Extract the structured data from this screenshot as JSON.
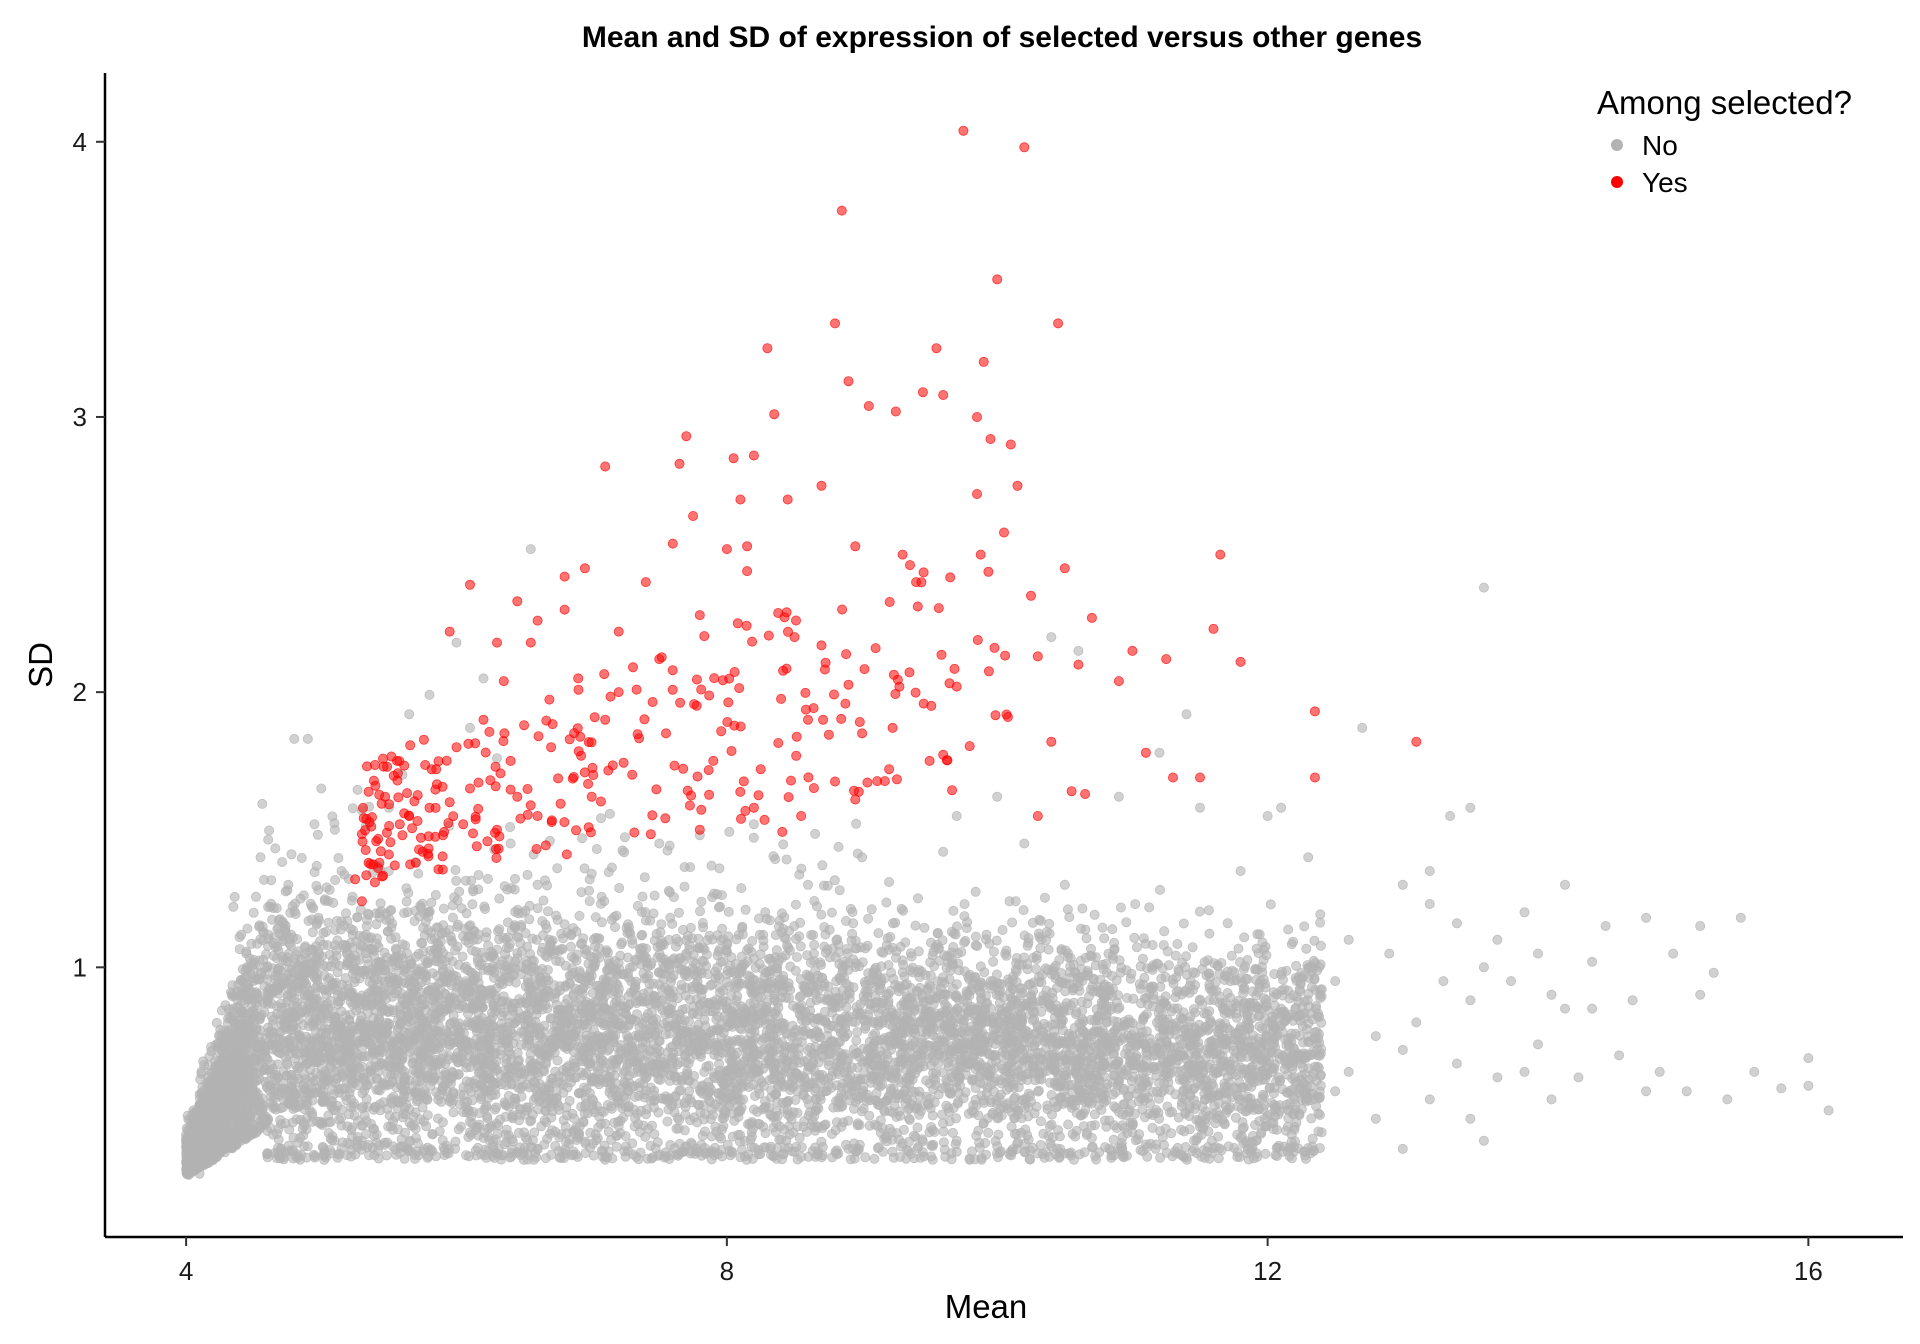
{
  "chart_data": {
    "type": "scatter",
    "title": "Mean and SD of expression of selected versus other genes",
    "xlabel": "Mean",
    "ylabel": "SD",
    "xlim": [
      3.4,
      16.7
    ],
    "ylim": [
      0.02,
      4.25
    ],
    "x_ticks": [
      4,
      8,
      12,
      16
    ],
    "y_ticks": [
      1,
      2,
      3,
      4
    ],
    "grid": false,
    "legend": {
      "title": "Among selected?",
      "position": "top-right",
      "entries": [
        {
          "label": "No",
          "color": "#b3b3b3"
        },
        {
          "label": "Yes",
          "color": "#ff0000"
        }
      ]
    },
    "series": [
      {
        "name": "No",
        "color": "#b3b3b3",
        "opacity": 0.6,
        "points": [
          [
            4.02,
            0.26
          ],
          [
            4.05,
            0.28
          ],
          [
            4.1,
            0.25
          ],
          [
            4.08,
            0.33
          ],
          [
            4.12,
            0.38
          ],
          [
            4.15,
            0.45
          ],
          [
            4.2,
            0.52
          ],
          [
            4.25,
            0.6
          ],
          [
            4.3,
            0.72
          ],
          [
            4.35,
            0.85
          ],
          [
            4.45,
            1.0
          ],
          [
            4.35,
            1.22
          ],
          [
            4.55,
            1.4
          ],
          [
            4.75,
            1.28
          ],
          [
            4.8,
            1.83
          ],
          [
            4.9,
            1.83
          ],
          [
            4.95,
            1.52
          ],
          [
            5.0,
            1.65
          ],
          [
            5.1,
            1.5
          ],
          [
            5.15,
            1.35
          ],
          [
            5.3,
            1.57
          ],
          [
            5.5,
            1.58
          ],
          [
            5.6,
            1.7
          ],
          [
            5.65,
            1.92
          ],
          [
            5.8,
            1.99
          ],
          [
            6.0,
            2.18
          ],
          [
            6.1,
            1.87
          ],
          [
            6.2,
            2.05
          ],
          [
            6.55,
            2.52
          ],
          [
            6.3,
            1.76
          ],
          [
            6.4,
            1.45
          ],
          [
            6.6,
            1.3
          ],
          [
            7.0,
            1.34
          ],
          [
            7.5,
            1.45
          ],
          [
            7.8,
            1.48
          ],
          [
            8.2,
            1.52
          ],
          [
            8.6,
            1.3
          ],
          [
            9.0,
            1.4
          ],
          [
            9.2,
            1.31
          ],
          [
            9.6,
            1.42
          ],
          [
            9.7,
            1.55
          ],
          [
            10.0,
            1.62
          ],
          [
            10.2,
            1.45
          ],
          [
            10.5,
            1.3
          ],
          [
            10.4,
            2.2
          ],
          [
            10.6,
            2.15
          ],
          [
            10.9,
            1.62
          ],
          [
            11.2,
            1.78
          ],
          [
            11.4,
            1.92
          ],
          [
            11.5,
            1.58
          ],
          [
            11.8,
            1.35
          ],
          [
            12.0,
            1.55
          ],
          [
            12.3,
            1.4
          ],
          [
            12.1,
            1.58
          ],
          [
            12.7,
            1.87
          ],
          [
            13.0,
            1.3
          ],
          [
            13.2,
            1.35
          ],
          [
            13.35,
            1.55
          ],
          [
            13.5,
            1.58
          ],
          [
            13.6,
            2.38
          ],
          [
            13.2,
            1.23
          ],
          [
            13.4,
            1.16
          ],
          [
            13.7,
            1.1
          ],
          [
            13.9,
            1.2
          ],
          [
            14.2,
            1.3
          ],
          [
            14.5,
            1.15
          ],
          [
            14.8,
            1.18
          ],
          [
            15.2,
            1.15
          ],
          [
            15.5,
            1.18
          ],
          [
            15.0,
            1.05
          ],
          [
            15.3,
            0.98
          ],
          [
            15.2,
            0.9
          ],
          [
            14.7,
            0.88
          ],
          [
            14.4,
            0.85
          ],
          [
            14.1,
            0.9
          ],
          [
            13.8,
            0.95
          ],
          [
            13.5,
            0.88
          ],
          [
            13.1,
            0.8
          ],
          [
            12.8,
            0.75
          ],
          [
            12.5,
            0.95
          ],
          [
            12.9,
            1.05
          ],
          [
            12.6,
            1.1
          ],
          [
            13.0,
            0.7
          ],
          [
            13.4,
            0.65
          ],
          [
            13.7,
            0.6
          ],
          [
            14.0,
            0.72
          ],
          [
            14.3,
            0.6
          ],
          [
            14.6,
            0.68
          ],
          [
            14.9,
            0.62
          ],
          [
            15.1,
            0.55
          ],
          [
            15.4,
            0.52
          ],
          [
            15.8,
            0.56
          ],
          [
            16.0,
            0.67
          ],
          [
            16.0,
            0.57
          ],
          [
            16.15,
            0.48
          ],
          [
            15.6,
            0.62
          ],
          [
            13.2,
            0.52
          ],
          [
            13.5,
            0.45
          ],
          [
            13.6,
            0.37
          ],
          [
            13.0,
            0.34
          ],
          [
            12.4,
            0.4
          ],
          [
            12.2,
            0.42
          ],
          [
            12.0,
            0.46
          ],
          [
            11.8,
            0.38
          ],
          [
            11.5,
            0.42
          ],
          [
            12.8,
            0.45
          ],
          [
            14.1,
            0.52
          ],
          [
            14.8,
            0.55
          ],
          [
            12.2,
            0.6
          ],
          [
            12.5,
            0.55
          ],
          [
            12.3,
            0.75
          ],
          [
            12.1,
            0.85
          ],
          [
            12.4,
            0.92
          ],
          [
            12.6,
            0.62
          ],
          [
            13.9,
            0.62
          ],
          [
            14.2,
            0.85
          ],
          [
            14.4,
            1.02
          ],
          [
            14.0,
            1.05
          ],
          [
            13.6,
            1.0
          ],
          [
            13.3,
            0.95
          ],
          [
            11.0,
            0.4
          ],
          [
            10.7,
            0.38
          ],
          [
            10.4,
            0.35
          ],
          [
            10.1,
            0.33
          ],
          [
            9.7,
            0.37
          ],
          [
            9.3,
            0.36
          ],
          [
            8.9,
            0.34
          ],
          [
            8.5,
            0.33
          ],
          [
            8.1,
            0.31
          ],
          [
            7.7,
            0.35
          ],
          [
            7.3,
            0.36
          ],
          [
            6.9,
            0.38
          ],
          [
            6.5,
            0.4
          ],
          [
            6.1,
            0.4
          ],
          [
            5.7,
            0.38
          ],
          [
            5.3,
            0.37
          ],
          [
            4.9,
            0.35
          ],
          [
            4.6,
            0.32
          ]
        ]
      },
      {
        "name": "Yes",
        "color": "#ff0000",
        "opacity": 0.55,
        "points": [
          [
            5.25,
            1.32
          ],
          [
            5.3,
            1.24
          ],
          [
            5.35,
            1.38
          ],
          [
            5.45,
            1.33
          ],
          [
            5.5,
            1.41
          ],
          [
            5.6,
            1.48
          ],
          [
            5.65,
            1.55
          ],
          [
            5.7,
            1.38
          ],
          [
            5.75,
            1.42
          ],
          [
            5.8,
            1.58
          ],
          [
            5.85,
            1.72
          ],
          [
            5.9,
            1.48
          ],
          [
            5.95,
            1.6
          ],
          [
            6.0,
            1.8
          ],
          [
            6.05,
            1.52
          ],
          [
            6.1,
            1.65
          ],
          [
            6.15,
            1.44
          ],
          [
            6.2,
            1.9
          ],
          [
            6.25,
            1.68
          ],
          [
            6.3,
            1.5
          ],
          [
            6.35,
            2.04
          ],
          [
            6.4,
            1.75
          ],
          [
            6.45,
            1.62
          ],
          [
            6.5,
            1.88
          ],
          [
            6.55,
            2.18
          ],
          [
            6.6,
            1.55
          ],
          [
            6.7,
            1.8
          ],
          [
            6.8,
            2.3
          ],
          [
            6.9,
            2.05
          ],
          [
            7.0,
            1.62
          ],
          [
            7.1,
            1.9
          ],
          [
            7.2,
            2.22
          ],
          [
            7.3,
            1.7
          ],
          [
            7.4,
            2.4
          ],
          [
            7.5,
            2.12
          ],
          [
            7.55,
            1.85
          ],
          [
            7.6,
            2.54
          ],
          [
            7.7,
            2.93
          ],
          [
            7.75,
            2.64
          ],
          [
            7.8,
            2.28
          ],
          [
            7.9,
            1.75
          ],
          [
            8.0,
            2.52
          ],
          [
            8.05,
            2.85
          ],
          [
            8.1,
            2.7
          ],
          [
            8.15,
            2.44
          ],
          [
            8.2,
            2.86
          ],
          [
            8.25,
            1.72
          ],
          [
            8.3,
            3.25
          ],
          [
            8.35,
            3.01
          ],
          [
            8.45,
            2.7
          ],
          [
            8.5,
            2.2
          ],
          [
            8.6,
            1.9
          ],
          [
            8.7,
            2.75
          ],
          [
            8.8,
            3.34
          ],
          [
            8.85,
            3.75
          ],
          [
            8.9,
            3.13
          ],
          [
            8.95,
            2.53
          ],
          [
            9.0,
            1.85
          ],
          [
            9.05,
            3.04
          ],
          [
            9.1,
            2.16
          ],
          [
            9.25,
            3.02
          ],
          [
            9.4,
            2.4
          ],
          [
            9.45,
            3.09
          ],
          [
            9.55,
            3.25
          ],
          [
            9.6,
            3.08
          ],
          [
            9.7,
            2.02
          ],
          [
            9.75,
            4.04
          ],
          [
            9.85,
            3.0
          ],
          [
            9.9,
            3.2
          ],
          [
            9.95,
            2.92
          ],
          [
            10.0,
            3.5
          ],
          [
            10.05,
            2.58
          ],
          [
            10.1,
            2.9
          ],
          [
            10.15,
            2.75
          ],
          [
            10.2,
            3.98
          ],
          [
            10.25,
            2.35
          ],
          [
            10.3,
            2.13
          ],
          [
            10.4,
            1.82
          ],
          [
            10.45,
            3.34
          ],
          [
            10.5,
            2.45
          ],
          [
            10.55,
            1.64
          ],
          [
            10.6,
            2.1
          ],
          [
            10.7,
            2.27
          ],
          [
            10.9,
            2.04
          ],
          [
            11.0,
            2.15
          ],
          [
            11.1,
            1.78
          ],
          [
            11.25,
            2.12
          ],
          [
            11.3,
            1.69
          ],
          [
            11.5,
            1.69
          ],
          [
            11.6,
            2.23
          ],
          [
            11.65,
            2.5
          ],
          [
            11.8,
            2.11
          ],
          [
            12.35,
            1.93
          ],
          [
            12.35,
            1.69
          ],
          [
            13.1,
            1.82
          ],
          [
            7.1,
            2.82
          ],
          [
            7.2,
            2.0
          ],
          [
            6.95,
            2.45
          ],
          [
            6.8,
            2.42
          ],
          [
            6.45,
            2.33
          ],
          [
            6.1,
            2.39
          ],
          [
            5.95,
            2.22
          ],
          [
            6.3,
            2.18
          ],
          [
            6.6,
            2.26
          ],
          [
            7.65,
            2.83
          ],
          [
            8.15,
            2.53
          ],
          [
            8.7,
            2.17
          ],
          [
            9.3,
            2.5
          ],
          [
            9.85,
            2.72
          ],
          [
            10.3,
            1.55
          ],
          [
            10.65,
            1.63
          ],
          [
            9.5,
            1.75
          ],
          [
            9.2,
            1.72
          ],
          [
            8.95,
            1.61
          ],
          [
            8.55,
            1.55
          ],
          [
            8.2,
            1.58
          ],
          [
            7.8,
            1.5
          ]
        ]
      }
    ]
  }
}
